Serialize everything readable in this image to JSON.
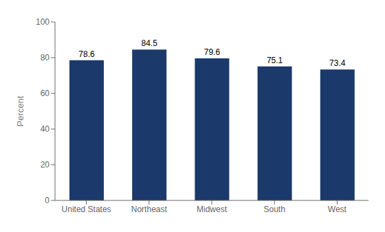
{
  "chart_data": {
    "type": "bar",
    "categories": [
      "United States",
      "Northeast",
      "Midwest",
      "South",
      "West"
    ],
    "values": [
      78.6,
      84.5,
      79.6,
      75.1,
      73.4
    ],
    "color": "#1b3a6b",
    "ylabel": "Percent",
    "ylim": [
      0,
      100
    ],
    "yticks": [
      0,
      20,
      40,
      60,
      80,
      100
    ],
    "grid": false,
    "data_labels": true
  }
}
